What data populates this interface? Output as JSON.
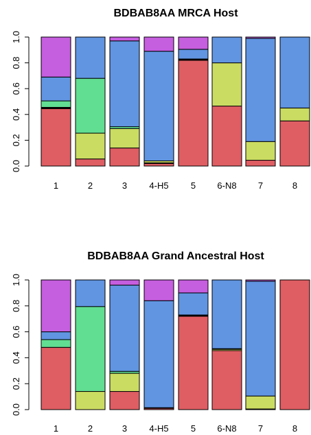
{
  "colors": {
    "red": "#df5e63",
    "yellow": "#cbdc62",
    "green": "#61de92",
    "blue": "#6195e2",
    "purple": "#c65ee0"
  },
  "chart_data": [
    {
      "type": "bar",
      "stacked": true,
      "title": "BDBAB8AA MRCA Host",
      "categories": [
        "1",
        "2",
        "3",
        "4-H5",
        "5",
        "6-N8",
        "7",
        "8"
      ],
      "ylim": [
        0,
        1
      ],
      "yticks": [
        "0.0",
        "0.2",
        "0.4",
        "0.6",
        "0.8",
        "1.0"
      ],
      "grid": false,
      "legend": "none",
      "series": [
        {
          "color": "red",
          "values": [
            0.445,
            0.055,
            0.14,
            0.02,
            0.82,
            0.465,
            0.045,
            0.35
          ]
        },
        {
          "color": "black",
          "values": [
            0.01,
            0.0,
            0.0,
            0.005,
            0.01,
            0.0,
            0.0,
            0.0
          ]
        },
        {
          "color": "yellow",
          "values": [
            0.0,
            0.2,
            0.15,
            0.015,
            0.0,
            0.335,
            0.145,
            0.1
          ]
        },
        {
          "color": "green",
          "values": [
            0.05,
            0.425,
            0.015,
            0.0,
            0.0,
            0.0,
            0.0,
            0.0
          ]
        },
        {
          "color": "blue",
          "values": [
            0.185,
            0.32,
            0.665,
            0.85,
            0.075,
            0.2,
            0.8,
            0.55
          ]
        },
        {
          "color": "purple",
          "values": [
            0.31,
            0.0,
            0.03,
            0.11,
            0.095,
            0.0,
            0.01,
            0.0
          ]
        }
      ]
    },
    {
      "type": "bar",
      "stacked": true,
      "title": "BDBAB8AA Grand Ancestral Host",
      "categories": [
        "1",
        "2",
        "3",
        "4-H5",
        "5",
        "6-N8",
        "7",
        "8"
      ],
      "ylim": [
        0,
        1
      ],
      "yticks": [
        "0.0",
        "0.2",
        "0.4",
        "0.6",
        "0.8",
        "1.0"
      ],
      "grid": false,
      "legend": "none",
      "series": [
        {
          "color": "red",
          "values": [
            0.48,
            0.0,
            0.14,
            0.01,
            0.72,
            0.455,
            0.0,
            1.0
          ]
        },
        {
          "color": "black",
          "values": [
            0.0,
            0.0,
            0.0,
            0.005,
            0.005,
            0.0,
            0.005,
            0.0
          ]
        },
        {
          "color": "yellow",
          "values": [
            0.0,
            0.14,
            0.14,
            0.0,
            0.0,
            0.01,
            0.1,
            0.0
          ]
        },
        {
          "color": "green",
          "values": [
            0.06,
            0.655,
            0.015,
            0.0,
            0.005,
            0.005,
            0.0,
            0.0
          ]
        },
        {
          "color": "blue",
          "values": [
            0.06,
            0.205,
            0.665,
            0.825,
            0.17,
            0.53,
            0.885,
            0.0
          ]
        },
        {
          "color": "purple",
          "values": [
            0.4,
            0.0,
            0.04,
            0.16,
            0.1,
            0.0,
            0.01,
            0.0
          ]
        }
      ]
    }
  ]
}
